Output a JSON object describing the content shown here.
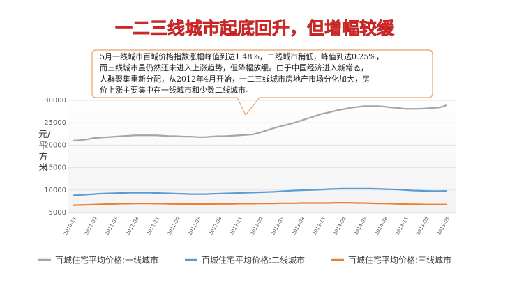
{
  "chart_data": {
    "type": "line",
    "title": "一二三线城市起底回升，但增幅较缓",
    "annotation": [
      "5月一线城市百城价格指数涨幅峰值到达1.48%，二线城市稍低，峰值到达0.25%，",
      "而三线城市虽仍然还未进入上涨趋势，但降幅放缓。由于中国经济进入新常态，",
      "人群聚集重新分配，从2012年4月开始，一二三线城市房地产市场分化加大，房",
      "价上涨主要集中在一线城市和少数二线城市。"
    ],
    "ylabel": "元/平方米",
    "categories": [
      "2010-11",
      null,
      null,
      "2011-02",
      null,
      null,
      "2011-05",
      null,
      null,
      "2011-08",
      null,
      null,
      "2011-11",
      null,
      null,
      "2012-02",
      null,
      null,
      "2012-05",
      null,
      null,
      "2012-08",
      null,
      null,
      "2012-11",
      null,
      null,
      "2013-02",
      null,
      null,
      "2013-05",
      null,
      null,
      "2013-08",
      null,
      null,
      "2013-11",
      null,
      null,
      "2014-02",
      null,
      null,
      "2014-05",
      null,
      null,
      "2014-08",
      null,
      null,
      "2014-11",
      null,
      null,
      "2015-02",
      null,
      null,
      "2015-05"
    ],
    "ylim": [
      5000,
      30000
    ],
    "yticks": [
      5000,
      10000,
      15000,
      20000,
      25000,
      30000
    ],
    "grid": true,
    "series": [
      {
        "name": "百城住宅平均价格:一线城市",
        "color": "#a5a5a5",
        "values": [
          21000,
          21100,
          21300,
          21600,
          21700,
          21800,
          21900,
          22000,
          22100,
          22200,
          22200,
          22200,
          22200,
          22100,
          22000,
          22000,
          21900,
          21900,
          21800,
          21800,
          21900,
          22000,
          22000,
          22100,
          22200,
          22300,
          22400,
          22800,
          23300,
          23800,
          24200,
          24600,
          25000,
          25500,
          26000,
          26500,
          27000,
          27300,
          27700,
          28000,
          28300,
          28500,
          28700,
          28700,
          28700,
          28600,
          28400,
          28300,
          28100,
          28100,
          28100,
          28200,
          28300,
          28400,
          28900
        ]
      },
      {
        "name": "百城住宅平均价格:二线城市",
        "color": "#5b9bd5",
        "values": [
          8800,
          8900,
          9000,
          9100,
          9200,
          9250,
          9300,
          9350,
          9400,
          9400,
          9400,
          9400,
          9350,
          9300,
          9250,
          9200,
          9150,
          9100,
          9100,
          9100,
          9150,
          9200,
          9250,
          9300,
          9350,
          9400,
          9450,
          9500,
          9550,
          9600,
          9700,
          9800,
          9900,
          9950,
          10000,
          10050,
          10100,
          10200,
          10250,
          10300,
          10300,
          10300,
          10300,
          10300,
          10250,
          10200,
          10150,
          10100,
          10000,
          9900,
          9850,
          9800,
          9750,
          9750,
          9800
        ]
      },
      {
        "name": "百城住宅平均价格:三线城市",
        "color": "#ed7d31",
        "values": [
          6600,
          6650,
          6700,
          6750,
          6800,
          6850,
          6900,
          6950,
          6950,
          7000,
          7000,
          7000,
          6950,
          6950,
          6900,
          6900,
          6850,
          6850,
          6850,
          6850,
          6850,
          6900,
          6900,
          6900,
          6950,
          6950,
          6950,
          7000,
          7000,
          7000,
          7050,
          7050,
          7050,
          7100,
          7100,
          7100,
          7100,
          7100,
          7150,
          7150,
          7150,
          7100,
          7100,
          7050,
          7000,
          7000,
          6950,
          6900,
          6850,
          6800,
          6800,
          6750,
          6750,
          6750,
          6750
        ]
      }
    ]
  }
}
